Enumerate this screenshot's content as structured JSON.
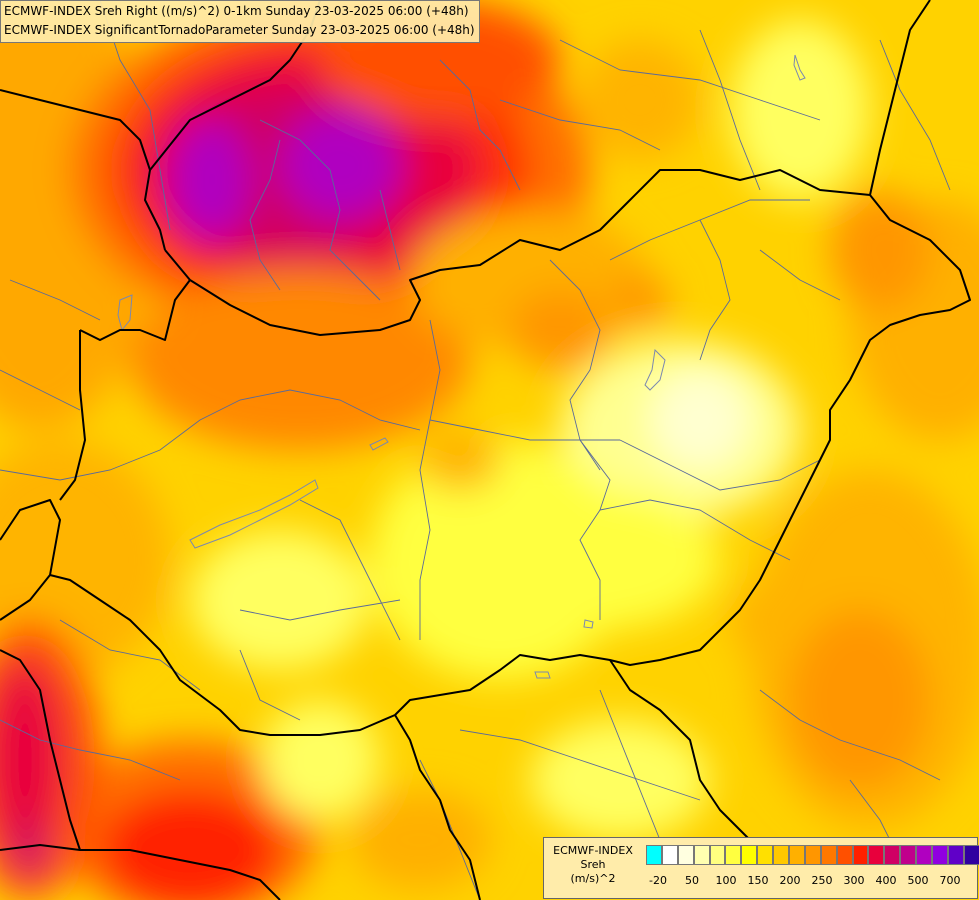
{
  "titles": [
    "ECMWF-INDEX Sreh Right ((m/s)^2) 0-1km Sunday 23-03-2025 06:00 (+48h)",
    "ECMWF-INDEX SignificantTornadoParameter Sunday 23-03-2025 06:00 (+48h)"
  ],
  "legend": {
    "caption_line1": "ECMWF-INDEX",
    "caption_line2": "Sreh",
    "caption_line3": "(m/s)^2",
    "swatch_colors": [
      "#00ffff",
      "#ffffff",
      "#ffffe0",
      "#ffffb0",
      "#ffff80",
      "#ffff40",
      "#ffff00",
      "#ffe000",
      "#ffc800",
      "#ffb000",
      "#ff9600",
      "#ff7800",
      "#ff5000",
      "#ff2000",
      "#e8003c",
      "#d00064",
      "#c0008c",
      "#b000c0",
      "#9000e0",
      "#6000c8",
      "#3000a0",
      "#0000a0"
    ],
    "tick_labels": [
      "-20",
      "50",
      "100",
      "150",
      "200",
      "250",
      "300",
      "400",
      "500",
      "700"
    ]
  },
  "colors": {
    "border": "#000000",
    "region_lines": "#5a6a9a",
    "water": "#7a88b0"
  }
}
